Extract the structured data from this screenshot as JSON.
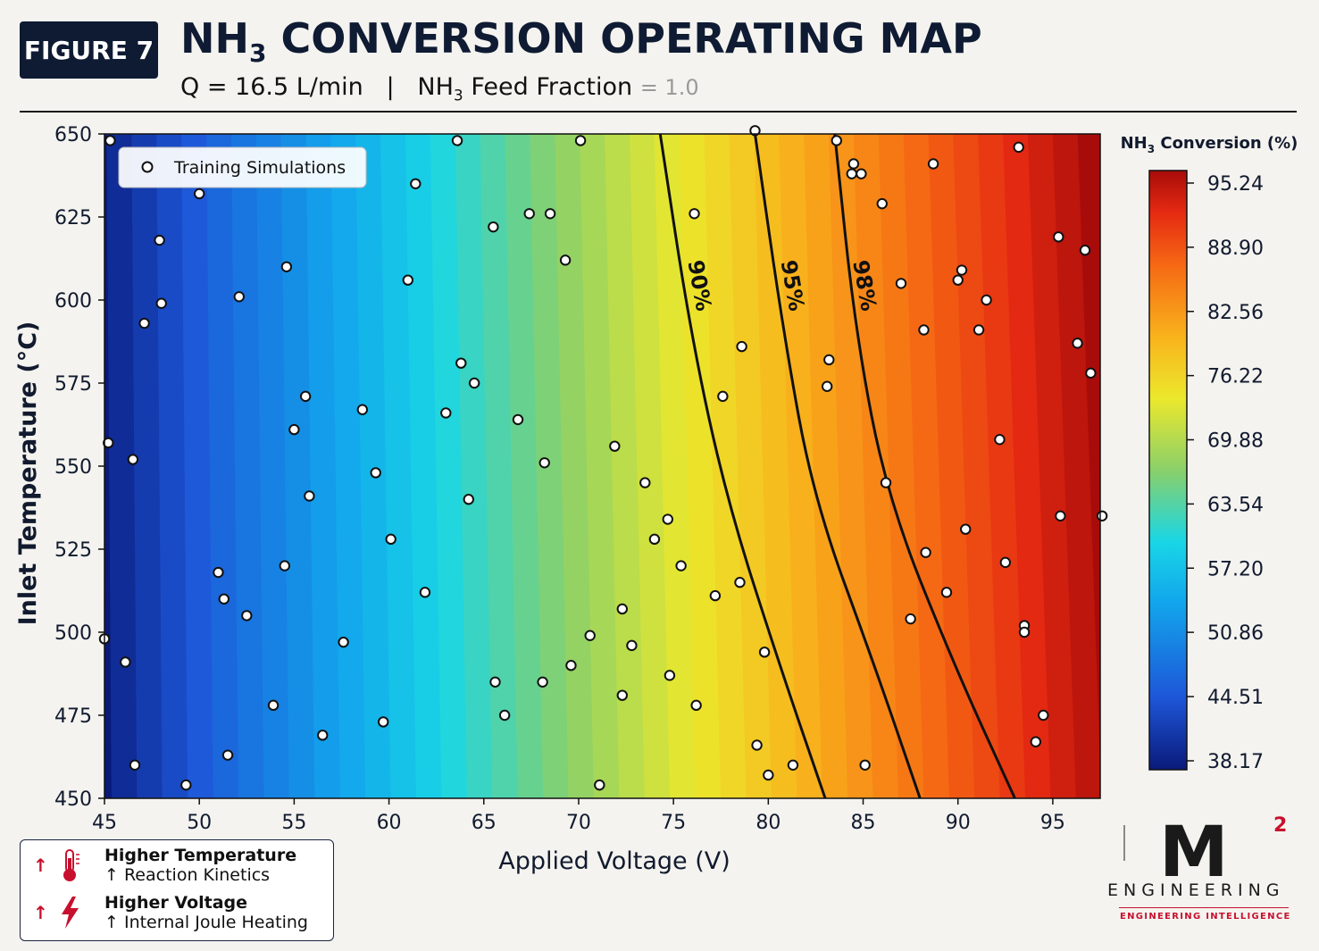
{
  "header": {
    "badge": "FIGURE 7",
    "title_pre": "NH",
    "title_sub": "3",
    "title_post": " CONVERSION OPERATING MAP",
    "subtitle_flow": "Q = 16.5  L/min",
    "subtitle_sep": "|",
    "subtitle_feed_pre": "NH",
    "subtitle_feed_sub": "3",
    "subtitle_feed_post": " Feed Fraction",
    "subtitle_feed_value": "= 1.0"
  },
  "chart_data": {
    "type": "heatmap",
    "xlabel": "Applied Voltage (V)",
    "ylabel": "Inlet Temperature (°C)",
    "xlim": [
      45,
      97.5
    ],
    "ylim": [
      450,
      650
    ],
    "xticks": [
      "45",
      "50",
      "55",
      "60",
      "65",
      "70",
      "75",
      "80",
      "85",
      "90",
      "95"
    ],
    "yticks": [
      "450",
      "475",
      "500",
      "525",
      "550",
      "575",
      "600",
      "625",
      "650"
    ],
    "colorbar": {
      "title_pre": "NH",
      "title_sub": "3",
      "title_post": " Conversion (%)",
      "ticks": [
        "95.24",
        "88.90",
        "82.56",
        "76.22",
        "69.88",
        "63.54",
        "57.20",
        "50.86",
        "44.51",
        "38.17"
      ],
      "min": 38.17,
      "max": 95.24
    },
    "contours": [
      {
        "label": "90%",
        "points": [
          [
            74.3,
            650
          ],
          [
            75.9,
            590
          ],
          [
            77.8,
            540
          ],
          [
            80.6,
            490
          ],
          [
            83.0,
            450
          ]
        ]
      },
      {
        "label": "95%",
        "points": [
          [
            79.3,
            650
          ],
          [
            80.8,
            590
          ],
          [
            82.4,
            540
          ],
          [
            85.6,
            490
          ],
          [
            88.0,
            450
          ]
        ]
      },
      {
        "label": "98%",
        "points": [
          [
            83.5,
            650
          ],
          [
            84.6,
            590
          ],
          [
            86.3,
            540
          ],
          [
            89.8,
            490
          ],
          [
            93.0,
            450
          ]
        ]
      }
    ],
    "legend": "Training Simulations",
    "legend_position": "top-left",
    "grid": false,
    "points": [
      [
        45.3,
        648
      ],
      [
        63.6,
        648
      ],
      [
        70.1,
        648
      ],
      [
        79.3,
        651
      ],
      [
        83.6,
        648
      ],
      [
        84.5,
        641
      ],
      [
        84.4,
        638
      ],
      [
        84.9,
        638
      ],
      [
        88.7,
        641
      ],
      [
        93.2,
        646
      ],
      [
        50,
        632
      ],
      [
        61.4,
        635
      ],
      [
        86,
        629
      ],
      [
        47.9,
        618
      ],
      [
        65.5,
        622
      ],
      [
        67.4,
        626
      ],
      [
        68.5,
        626
      ],
      [
        76.1,
        626
      ],
      [
        95.3,
        619
      ],
      [
        96.7,
        615
      ],
      [
        54.6,
        610
      ],
      [
        69.3,
        612
      ],
      [
        52.1,
        601
      ],
      [
        48,
        599
      ],
      [
        61,
        606
      ],
      [
        87,
        605
      ],
      [
        90,
        606
      ],
      [
        90.2,
        609
      ],
      [
        91.5,
        600
      ],
      [
        47.1,
        593
      ],
      [
        88.2,
        591
      ],
      [
        91.1,
        591
      ],
      [
        96.3,
        587
      ],
      [
        78.6,
        586
      ],
      [
        63.8,
        581
      ],
      [
        83.2,
        582
      ],
      [
        64.5,
        575
      ],
      [
        97,
        578
      ],
      [
        83.1,
        574
      ],
      [
        55.6,
        571
      ],
      [
        77.6,
        571
      ],
      [
        58.6,
        567
      ],
      [
        63,
        566
      ],
      [
        66.8,
        564
      ],
      [
        45.2,
        557
      ],
      [
        55,
        561
      ],
      [
        92.2,
        558
      ],
      [
        46.5,
        552
      ],
      [
        71.9,
        556
      ],
      [
        59.3,
        548
      ],
      [
        68.2,
        551
      ],
      [
        73.5,
        545
      ],
      [
        86.2,
        545
      ],
      [
        55.8,
        541
      ],
      [
        64.2,
        540
      ],
      [
        74.7,
        534
      ],
      [
        95.4,
        535
      ],
      [
        97.6,
        535
      ],
      [
        60.1,
        528
      ],
      [
        74,
        528
      ],
      [
        90.4,
        531
      ],
      [
        54.5,
        520
      ],
      [
        75.4,
        520
      ],
      [
        88.3,
        524
      ],
      [
        92.5,
        521
      ],
      [
        51,
        518
      ],
      [
        61.9,
        512
      ],
      [
        78.5,
        515
      ],
      [
        77.2,
        511
      ],
      [
        51.3,
        510
      ],
      [
        72.3,
        507
      ],
      [
        89.4,
        512
      ],
      [
        52.5,
        505
      ],
      [
        87.5,
        504
      ],
      [
        93.5,
        502
      ],
      [
        93.5,
        500
      ],
      [
        57.6,
        497
      ],
      [
        45,
        498
      ],
      [
        70.6,
        499
      ],
      [
        72.8,
        496
      ],
      [
        46.1,
        491
      ],
      [
        69.6,
        490
      ],
      [
        79.8,
        494
      ],
      [
        65.6,
        485
      ],
      [
        68.1,
        485
      ],
      [
        74.8,
        487
      ],
      [
        72.3,
        481
      ],
      [
        53.9,
        478
      ],
      [
        66.1,
        475
      ],
      [
        76.2,
        478
      ],
      [
        94.5,
        475
      ],
      [
        59.7,
        473
      ],
      [
        56.5,
        469
      ],
      [
        79.4,
        466
      ],
      [
        94.1,
        467
      ],
      [
        51.5,
        463
      ],
      [
        46.6,
        460
      ],
      [
        80,
        457
      ],
      [
        81.3,
        460
      ],
      [
        85.1,
        460
      ],
      [
        49.3,
        454
      ],
      [
        71.1,
        454
      ]
    ]
  },
  "legend_box": {
    "items": [
      {
        "arrow": "↑",
        "heading": "Higher Temperature",
        "detail": "↑ Reaction Kinetics"
      },
      {
        "arrow": "↑",
        "heading": "Higher Voltage",
        "detail": "↑ Internal Joule Heating"
      }
    ]
  },
  "logo": {
    "mark": "M",
    "superscript": "2",
    "wordmark": "ENGINEERING",
    "tagline": "ENGINEERING INTELLIGENCE"
  },
  "colors": {
    "navy": "#0f1b33",
    "accent_red": "#c8102e",
    "background": "#f4f3ef"
  }
}
